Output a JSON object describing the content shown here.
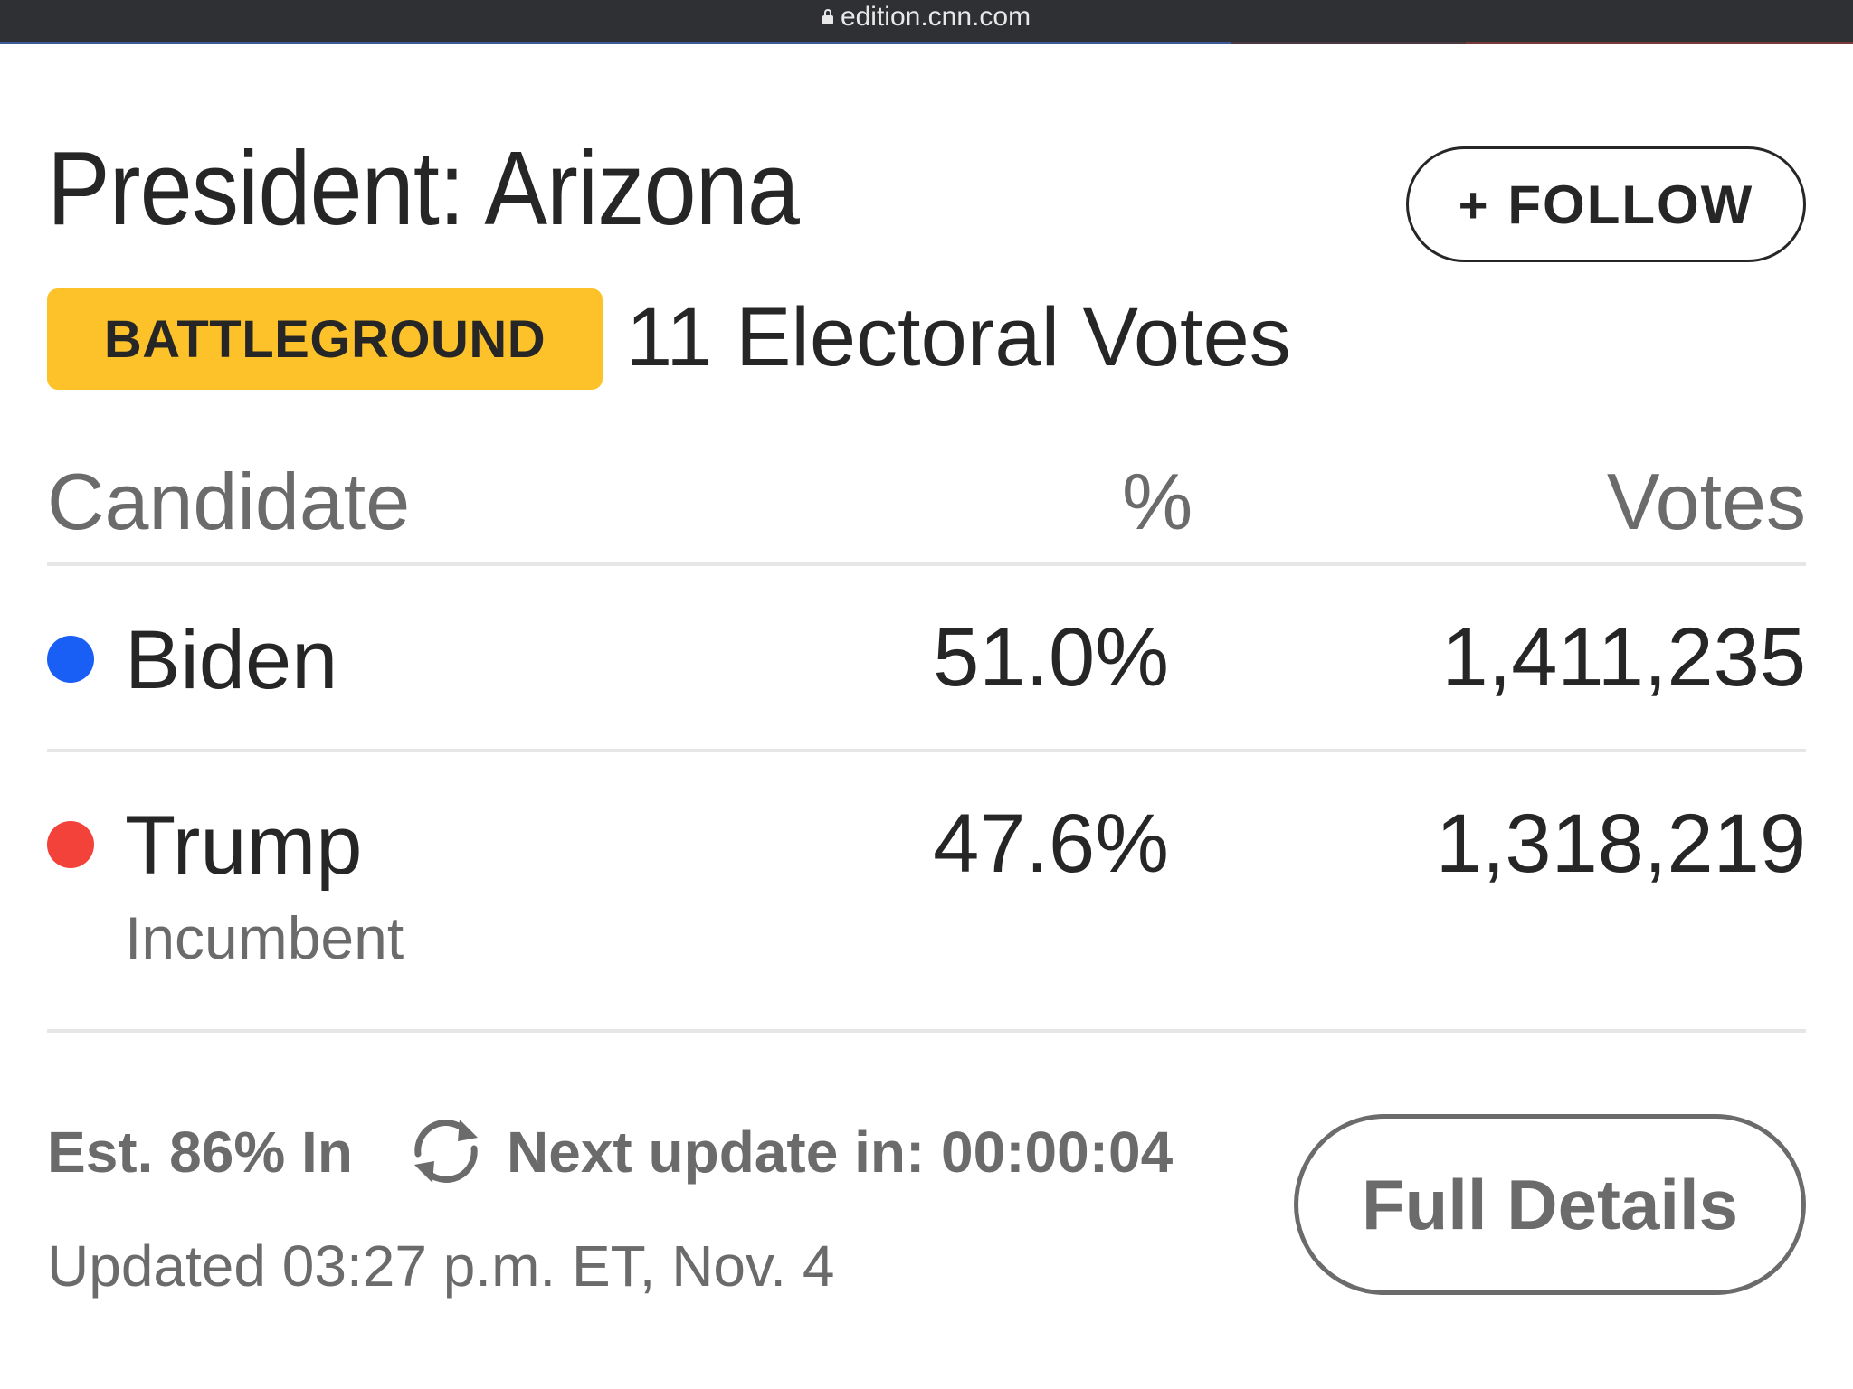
{
  "browser": {
    "url": "edition.cnn.com"
  },
  "race": {
    "title": "President: Arizona",
    "follow_label": "FOLLOW",
    "follow_icon": "+",
    "badge": "BATTLEGROUND",
    "electoral_votes": "11 Electoral Votes"
  },
  "table": {
    "headers": {
      "candidate": "Candidate",
      "percent": "%",
      "votes": "Votes"
    },
    "rows": [
      {
        "name": "Biden",
        "note": "",
        "percent": "51.0%",
        "votes": "1,411,235",
        "color": "#1a5ff5"
      },
      {
        "name": "Trump",
        "note": "Incumbent",
        "percent": "47.6%",
        "votes": "1,318,219",
        "color": "#f2423a"
      }
    ]
  },
  "footer": {
    "estimate": "Est. 86% In",
    "refresh_icon": "refresh-icon",
    "next_update": "Next update in: 00:00:04",
    "updated": "Updated 03:27 p.m. ET, Nov. 4",
    "details_label": "Full Details"
  },
  "colors": {
    "badge": "#fdc22a",
    "text": "#262626",
    "muted": "#6b6b6b"
  }
}
